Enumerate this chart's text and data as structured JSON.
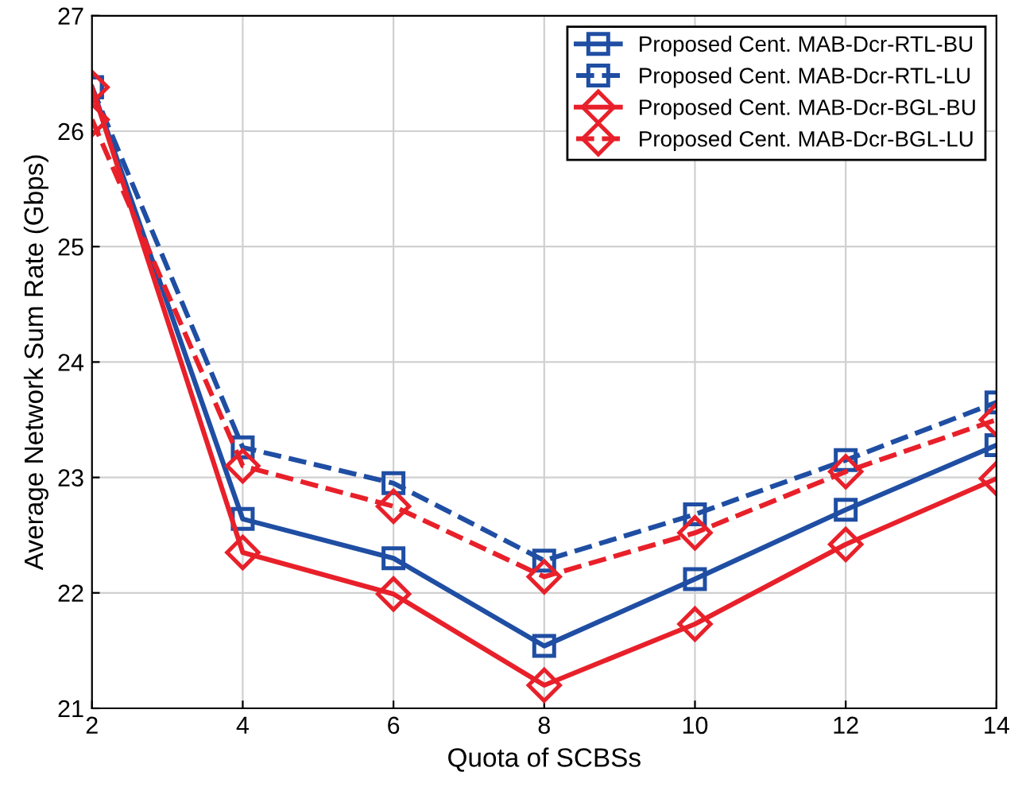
{
  "chart_data": {
    "type": "line",
    "xlabel": "Quota of SCBSs",
    "ylabel": "Average Network Sum Rate (Gbps)",
    "x": [
      2,
      4,
      6,
      8,
      10,
      12,
      14
    ],
    "series": [
      {
        "name": "Proposed Cent. MAB-Dcr-RTL-BU",
        "color": "#1f4ea3",
        "marker": "square",
        "line_style": "solid",
        "values": [
          26.38,
          22.64,
          22.3,
          21.54,
          22.12,
          22.72,
          23.28
        ]
      },
      {
        "name": "Proposed Cent. MAB-Dcr-RTL-LU",
        "color": "#1f4ea3",
        "marker": "square",
        "line_style": "dashed",
        "values": [
          26.38,
          23.26,
          22.95,
          22.28,
          22.68,
          23.15,
          23.65
        ]
      },
      {
        "name": "Proposed Cent. MAB-Dcr-BGL-BU",
        "color": "#e8202a",
        "marker": "diamond",
        "line_style": "solid",
        "values": [
          26.38,
          22.35,
          21.99,
          21.2,
          21.73,
          22.42,
          22.99
        ]
      },
      {
        "name": "Proposed Cent. MAB-Dcr-BGL-LU",
        "color": "#e8202a",
        "marker": "diamond",
        "line_style": "dashed",
        "values": [
          26.1,
          23.1,
          22.75,
          22.14,
          22.52,
          23.05,
          23.5
        ]
      }
    ],
    "xlim": [
      2,
      14
    ],
    "xticks": [
      2,
      4,
      6,
      8,
      10,
      12,
      14
    ],
    "ylim": [
      21,
      27
    ],
    "yticks": [
      21,
      22,
      23,
      24,
      25,
      26,
      27
    ],
    "grid": true,
    "legend": "top right"
  }
}
